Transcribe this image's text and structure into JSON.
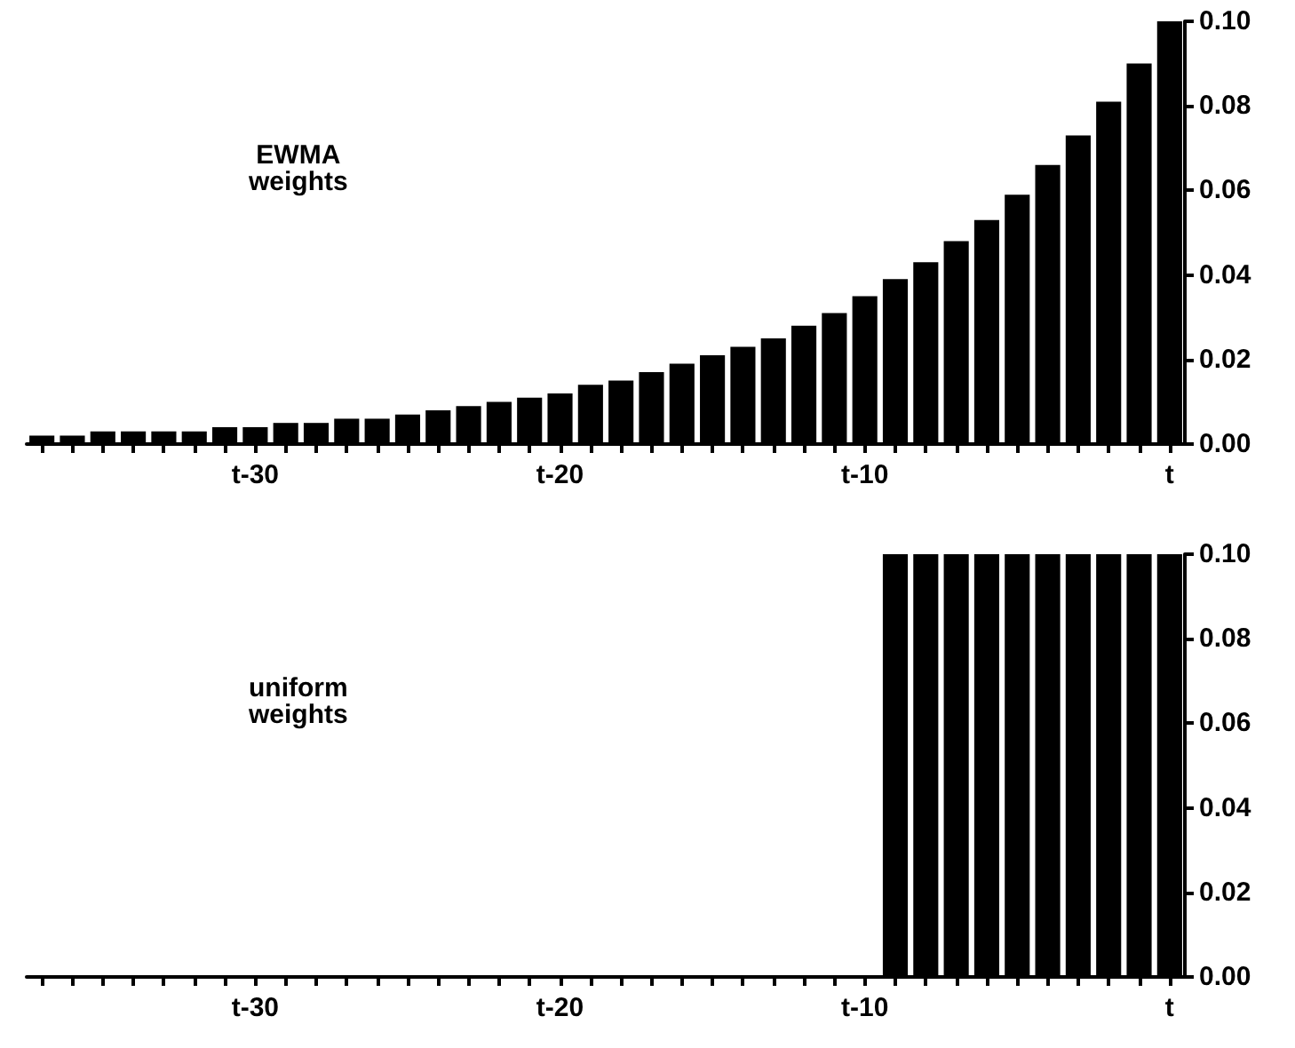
{
  "chart_data": [
    {
      "type": "bar",
      "annotations": [
        "EWMA\nweights"
      ],
      "categories": [
        null,
        null,
        null,
        null,
        null,
        null,
        null,
        "t-30",
        null,
        null,
        null,
        null,
        null,
        null,
        null,
        null,
        null,
        "t-20",
        null,
        null,
        null,
        null,
        null,
        null,
        null,
        null,
        null,
        "t-10",
        null,
        null,
        null,
        null,
        null,
        null,
        null,
        null,
        null,
        "t"
      ],
      "values": [
        0.002,
        0.002,
        0.003,
        0.003,
        0.003,
        0.003,
        0.004,
        0.004,
        0.005,
        0.005,
        0.006,
        0.006,
        0.007,
        0.008,
        0.009,
        0.01,
        0.011,
        0.012,
        0.014,
        0.015,
        0.017,
        0.019,
        0.021,
        0.023,
        0.025,
        0.028,
        0.031,
        0.035,
        0.039,
        0.043,
        0.048,
        0.053,
        0.059,
        0.066,
        0.073,
        0.081,
        0.09,
        0.1
      ],
      "color": "#000000",
      "ylim": [
        0,
        0.1
      ],
      "yticks": [
        {
          "value": 0,
          "label": "0.00"
        },
        {
          "value": 0.02,
          "label": "0.02"
        },
        {
          "value": 0.04,
          "label": "0.04"
        },
        {
          "value": 0.06,
          "label": "0.06"
        },
        {
          "value": 0.08,
          "label": "0.08"
        },
        {
          "value": 0.1,
          "label": "0.10"
        }
      ],
      "grid": false
    },
    {
      "type": "bar",
      "annotations": [
        "uniform\nweights"
      ],
      "categories": [
        null,
        null,
        null,
        null,
        null,
        null,
        null,
        "t-30",
        null,
        null,
        null,
        null,
        null,
        null,
        null,
        null,
        null,
        "t-20",
        null,
        null,
        null,
        null,
        null,
        null,
        null,
        null,
        null,
        "t-10",
        null,
        null,
        null,
        null,
        null,
        null,
        null,
        null,
        null,
        "t"
      ],
      "values": [
        0,
        0,
        0,
        0,
        0,
        0,
        0,
        0,
        0,
        0,
        0,
        0,
        0,
        0,
        0,
        0,
        0,
        0,
        0,
        0,
        0,
        0,
        0,
        0,
        0,
        0,
        0,
        0,
        0.1,
        0.1,
        0.1,
        0.1,
        0.1,
        0.1,
        0.1,
        0.1,
        0.1,
        0.1
      ],
      "color": "#000000",
      "ylim": [
        0,
        0.1
      ],
      "yticks": [
        {
          "value": 0,
          "label": "0.00"
        },
        {
          "value": 0.02,
          "label": "0.02"
        },
        {
          "value": 0.04,
          "label": "0.04"
        },
        {
          "value": 0.06,
          "label": "0.06"
        },
        {
          "value": 0.08,
          "label": "0.08"
        },
        {
          "value": 0.1,
          "label": "0.10"
        }
      ],
      "grid": false
    }
  ]
}
